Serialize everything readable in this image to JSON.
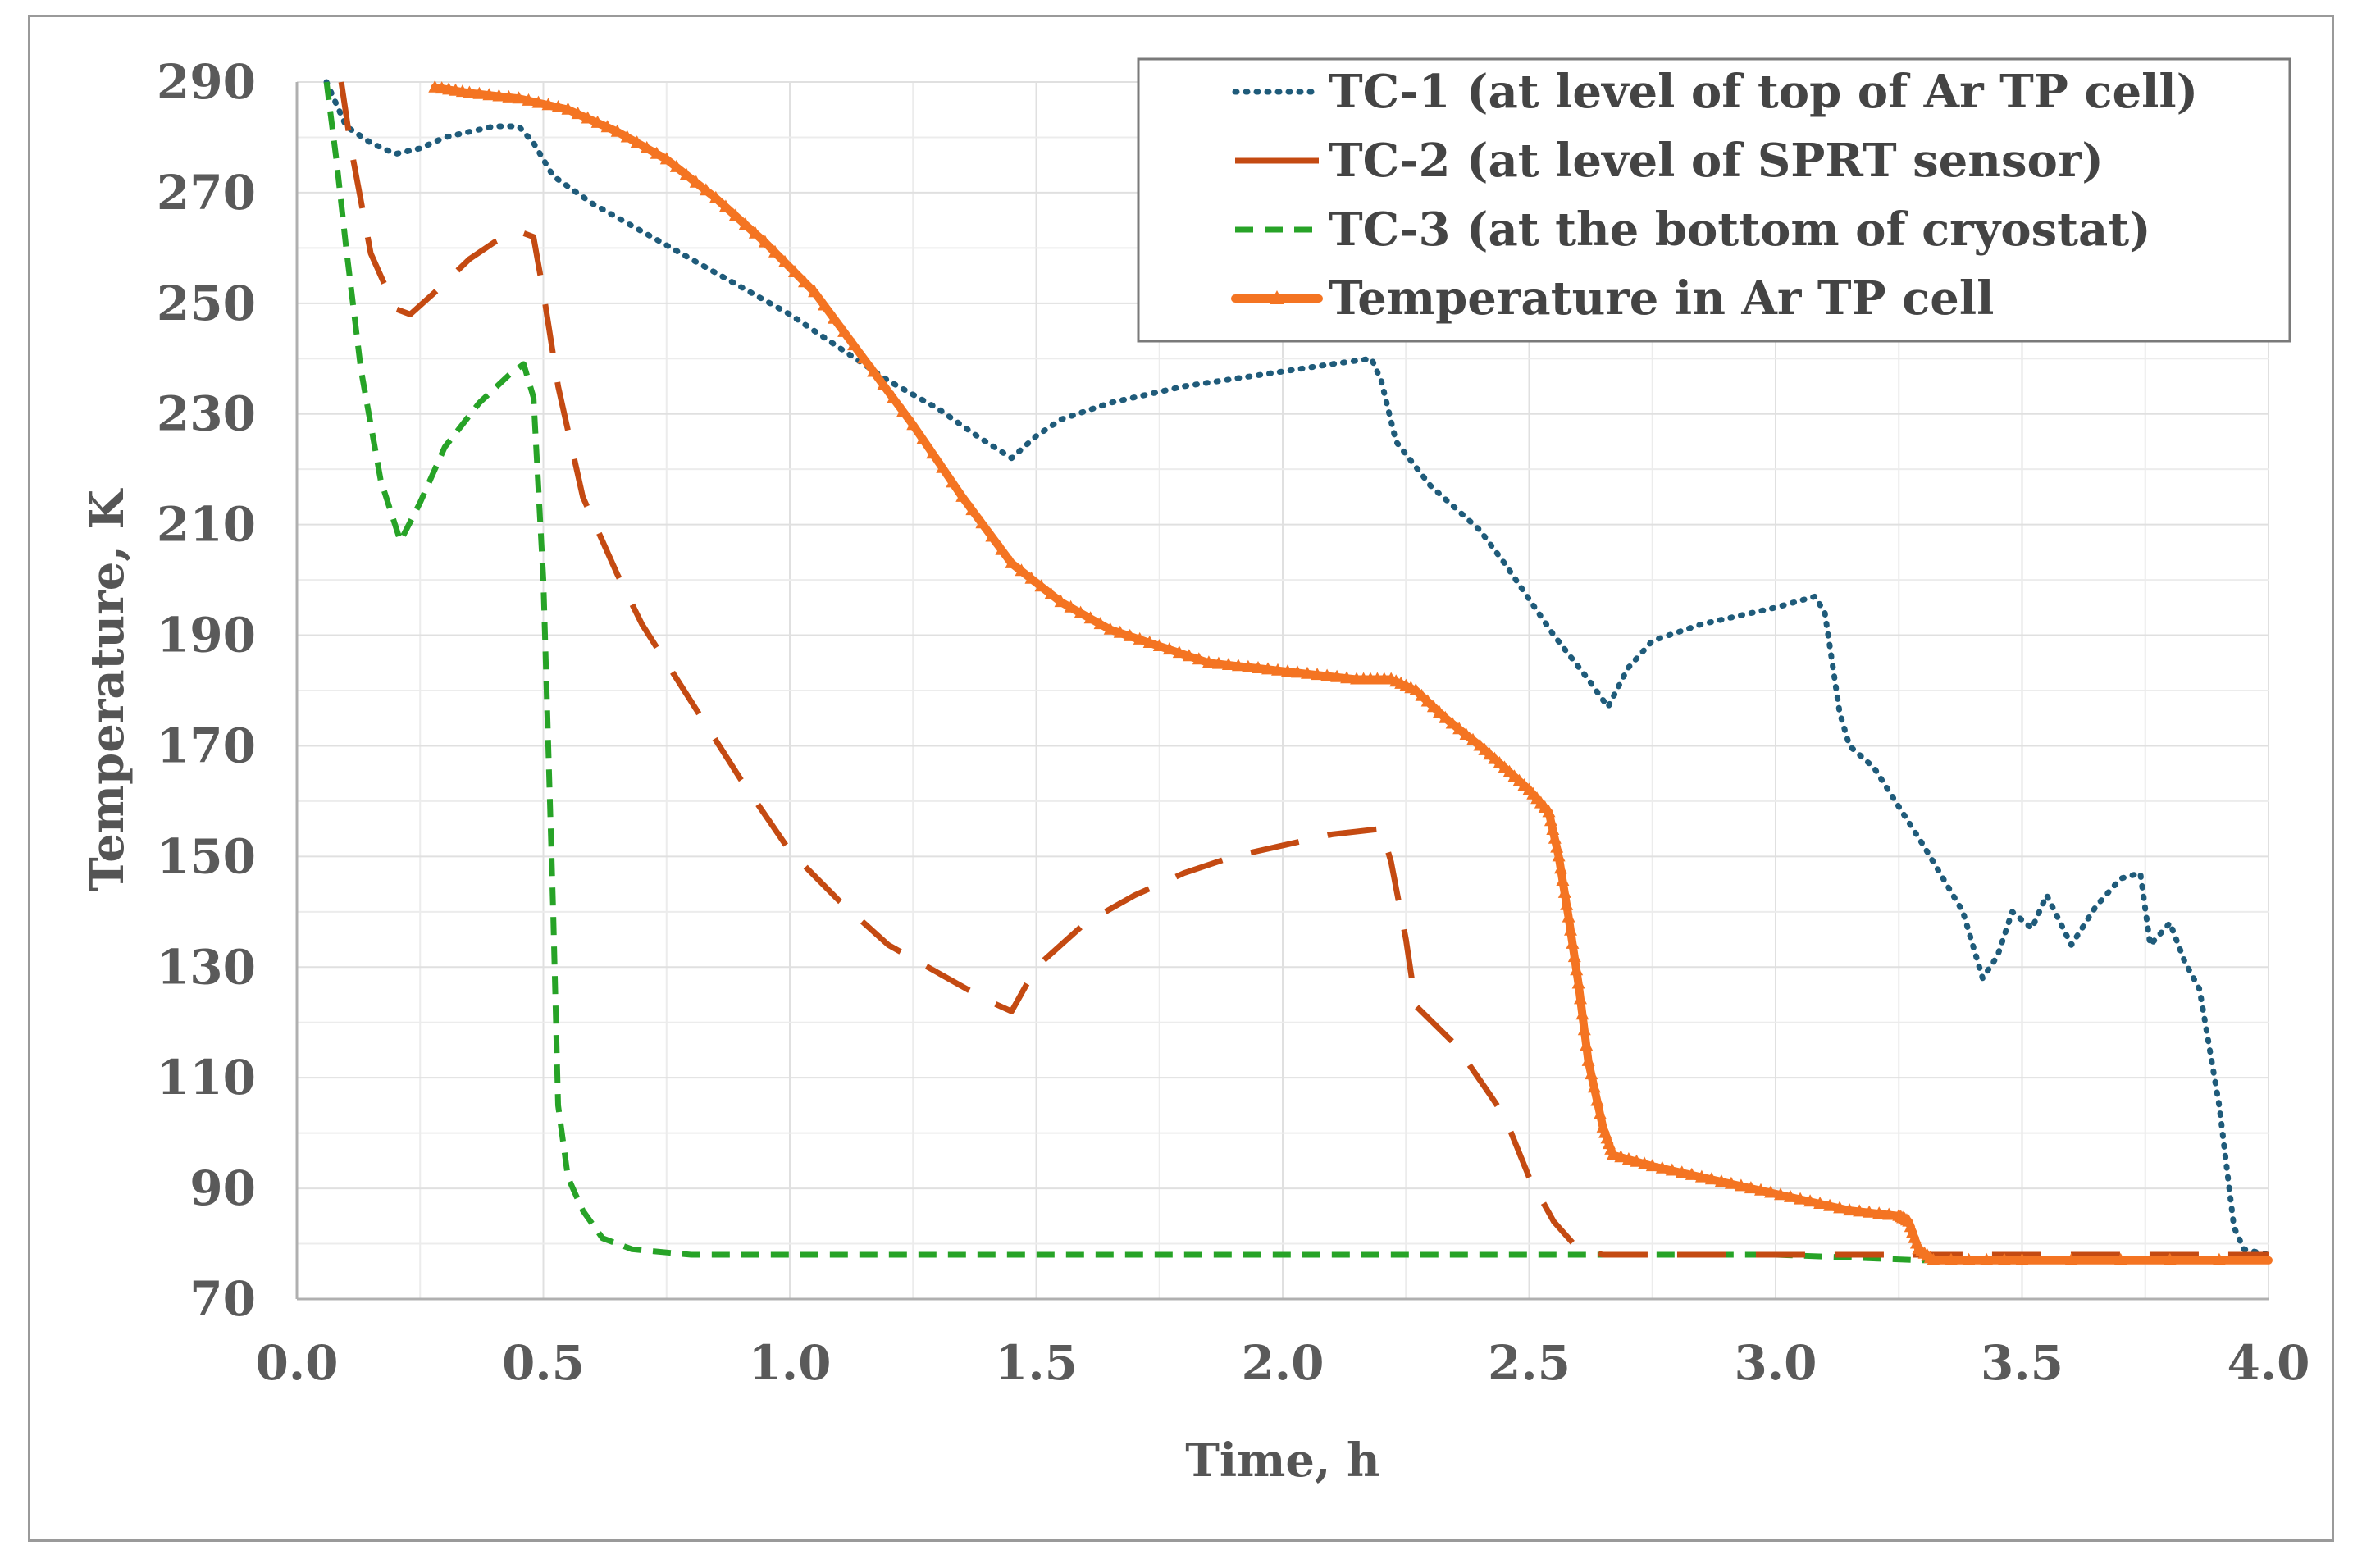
{
  "chart_data": {
    "type": "line",
    "title": "",
    "xlabel": "Time, h",
    "ylabel": "Temperature, K",
    "xlim": [
      0.0,
      4.0
    ],
    "ylim": [
      70,
      290
    ],
    "x_ticks": [
      "0.0",
      "0.5",
      "1.0",
      "1.5",
      "2.0",
      "2.5",
      "3.0",
      "3.5",
      "4.0"
    ],
    "y_ticks": [
      "70",
      "90",
      "110",
      "130",
      "150",
      "170",
      "190",
      "210",
      "230",
      "250",
      "270",
      "290"
    ],
    "grid": true,
    "legend_position": "top-right",
    "series": [
      {
        "name": "TC-1 (at level of top of Ar TP cell)",
        "color": "#1f5b7a",
        "style": "dotted",
        "points": [
          [
            0.06,
            290
          ],
          [
            0.1,
            282
          ],
          [
            0.15,
            279
          ],
          [
            0.2,
            277
          ],
          [
            0.25,
            278
          ],
          [
            0.3,
            280
          ],
          [
            0.35,
            281
          ],
          [
            0.4,
            282
          ],
          [
            0.45,
            282
          ],
          [
            0.48,
            279
          ],
          [
            0.52,
            273
          ],
          [
            0.6,
            268
          ],
          [
            0.7,
            263
          ],
          [
            0.8,
            258
          ],
          [
            0.9,
            253
          ],
          [
            1.0,
            248
          ],
          [
            1.1,
            242
          ],
          [
            1.2,
            236
          ],
          [
            1.3,
            231
          ],
          [
            1.38,
            226
          ],
          [
            1.45,
            222
          ],
          [
            1.5,
            226
          ],
          [
            1.55,
            229
          ],
          [
            1.65,
            232
          ],
          [
            1.8,
            235
          ],
          [
            1.95,
            237
          ],
          [
            2.1,
            239
          ],
          [
            2.18,
            240
          ],
          [
            2.2,
            236
          ],
          [
            2.23,
            225
          ],
          [
            2.3,
            217
          ],
          [
            2.4,
            209
          ],
          [
            2.45,
            203
          ],
          [
            2.55,
            190
          ],
          [
            2.62,
            182
          ],
          [
            2.66,
            177
          ],
          [
            2.7,
            184
          ],
          [
            2.75,
            189
          ],
          [
            2.85,
            192
          ],
          [
            3.0,
            195
          ],
          [
            3.08,
            197
          ],
          [
            3.1,
            194
          ],
          [
            3.13,
            176
          ],
          [
            3.15,
            170
          ],
          [
            3.2,
            166
          ],
          [
            3.3,
            152
          ],
          [
            3.38,
            140
          ],
          [
            3.42,
            128
          ],
          [
            3.45,
            132
          ],
          [
            3.48,
            140
          ],
          [
            3.52,
            137
          ],
          [
            3.55,
            143
          ],
          [
            3.6,
            134
          ],
          [
            3.65,
            141
          ],
          [
            3.7,
            146
          ],
          [
            3.74,
            147
          ],
          [
            3.76,
            134
          ],
          [
            3.8,
            138
          ],
          [
            3.83,
            131
          ],
          [
            3.86,
            126
          ],
          [
            3.9,
            105
          ],
          [
            3.93,
            83
          ],
          [
            3.95,
            79
          ],
          [
            4.0,
            78
          ]
        ]
      },
      {
        "name": "TC-2 (at level of SPRT sensor)",
        "color": "#c44a12",
        "style": "dashed",
        "points": [
          [
            0.09,
            290
          ],
          [
            0.11,
            278
          ],
          [
            0.15,
            259
          ],
          [
            0.2,
            249
          ],
          [
            0.23,
            248
          ],
          [
            0.28,
            252
          ],
          [
            0.35,
            258
          ],
          [
            0.4,
            261
          ],
          [
            0.45,
            263
          ],
          [
            0.48,
            262
          ],
          [
            0.5,
            252
          ],
          [
            0.53,
            235
          ],
          [
            0.58,
            215
          ],
          [
            0.65,
            201
          ],
          [
            0.7,
            192
          ],
          [
            0.8,
            178
          ],
          [
            0.9,
            164
          ],
          [
            1.0,
            151
          ],
          [
            1.1,
            142
          ],
          [
            1.2,
            134
          ],
          [
            1.3,
            129
          ],
          [
            1.4,
            124
          ],
          [
            1.45,
            122
          ],
          [
            1.5,
            130
          ],
          [
            1.6,
            138
          ],
          [
            1.7,
            143
          ],
          [
            1.8,
            147
          ],
          [
            1.9,
            150
          ],
          [
            2.0,
            152
          ],
          [
            2.1,
            154
          ],
          [
            2.2,
            155
          ],
          [
            2.22,
            149
          ],
          [
            2.25,
            135
          ],
          [
            2.27,
            123
          ],
          [
            2.35,
            116
          ],
          [
            2.42,
            107
          ],
          [
            2.45,
            103
          ],
          [
            2.5,
            92
          ],
          [
            2.55,
            84
          ],
          [
            2.6,
            79
          ],
          [
            2.65,
            78
          ],
          [
            3.0,
            78
          ],
          [
            3.1,
            78
          ],
          [
            3.3,
            78
          ],
          [
            4.0,
            78
          ]
        ]
      },
      {
        "name": "TC-3 (at the bottom of cryostat)",
        "color": "#27a327",
        "style": "dashed",
        "points": [
          [
            0.06,
            290
          ],
          [
            0.08,
            276
          ],
          [
            0.1,
            260
          ],
          [
            0.13,
            238
          ],
          [
            0.17,
            218
          ],
          [
            0.21,
            207
          ],
          [
            0.25,
            214
          ],
          [
            0.3,
            224
          ],
          [
            0.37,
            232
          ],
          [
            0.43,
            237
          ],
          [
            0.46,
            239
          ],
          [
            0.48,
            233
          ],
          [
            0.5,
            200
          ],
          [
            0.52,
            140
          ],
          [
            0.53,
            105
          ],
          [
            0.55,
            92
          ],
          [
            0.58,
            86
          ],
          [
            0.62,
            81
          ],
          [
            0.68,
            79
          ],
          [
            0.8,
            78
          ],
          [
            1.5,
            78
          ],
          [
            3.0,
            78
          ],
          [
            3.3,
            77
          ],
          [
            4.0,
            77
          ]
        ]
      },
      {
        "name": "Temperature in Ar TP cell",
        "color": "#f47422",
        "style": "solid-markers",
        "points": [
          [
            0.28,
            289
          ],
          [
            0.35,
            288
          ],
          [
            0.45,
            287
          ],
          [
            0.55,
            285
          ],
          [
            0.65,
            281
          ],
          [
            0.75,
            276
          ],
          [
            0.85,
            269
          ],
          [
            0.95,
            261
          ],
          [
            1.05,
            252
          ],
          [
            1.15,
            240
          ],
          [
            1.25,
            228
          ],
          [
            1.35,
            215
          ],
          [
            1.45,
            203
          ],
          [
            1.55,
            196
          ],
          [
            1.65,
            191
          ],
          [
            1.75,
            188
          ],
          [
            1.85,
            185
          ],
          [
            1.95,
            184
          ],
          [
            2.05,
            183
          ],
          [
            2.15,
            182
          ],
          [
            2.22,
            182
          ],
          [
            2.27,
            180
          ],
          [
            2.33,
            175
          ],
          [
            2.4,
            170
          ],
          [
            2.45,
            166
          ],
          [
            2.5,
            162
          ],
          [
            2.54,
            158
          ],
          [
            2.56,
            150
          ],
          [
            2.58,
            139
          ],
          [
            2.6,
            127
          ],
          [
            2.62,
            113
          ],
          [
            2.65,
            101
          ],
          [
            2.67,
            96
          ],
          [
            2.75,
            94
          ],
          [
            2.85,
            92
          ],
          [
            2.95,
            90
          ],
          [
            3.05,
            88
          ],
          [
            3.15,
            86
          ],
          [
            3.25,
            85
          ],
          [
            3.27,
            84
          ],
          [
            3.29,
            79
          ],
          [
            3.32,
            77
          ],
          [
            3.5,
            77
          ],
          [
            4.0,
            77
          ]
        ]
      }
    ]
  }
}
